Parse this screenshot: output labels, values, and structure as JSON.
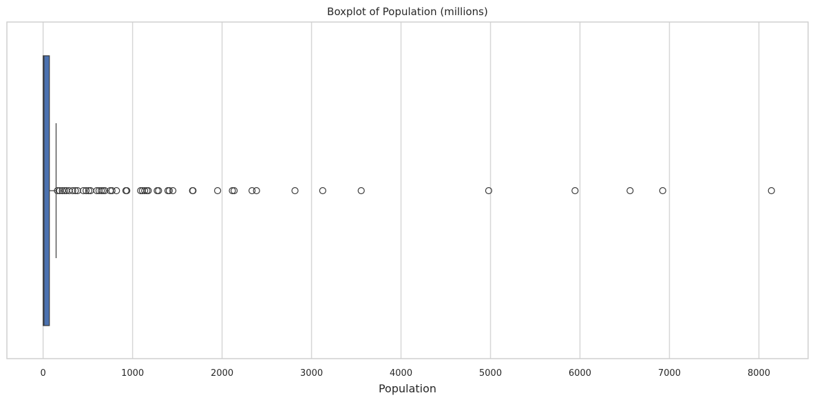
{
  "chart_data": {
    "type": "boxplot",
    "orientation": "horizontal",
    "title": "Boxplot of Population (millions)",
    "xlabel": "Population",
    "ylabel": "",
    "xlim": [
      -405,
      8550
    ],
    "xticks": [
      0,
      1000,
      2000,
      3000,
      4000,
      5000,
      6000,
      7000,
      8000
    ],
    "xtick_labels": [
      "0",
      "1000",
      "2000",
      "3000",
      "4000",
      "5000",
      "6000",
      "7000",
      "8000"
    ],
    "grid": true,
    "box": {
      "q1": 0.5,
      "median": 10,
      "q3": 70,
      "whisker_low": 0,
      "whisker_high": 145
    },
    "outliers": [
      160,
      185,
      215,
      240,
      260,
      290,
      330,
      360,
      385,
      450,
      480,
      510,
      530,
      600,
      625,
      650,
      670,
      690,
      750,
      770,
      820,
      925,
      935,
      1090,
      1110,
      1135,
      1160,
      1175,
      1275,
      1290,
      1395,
      1410,
      1450,
      1670,
      1675,
      1950,
      2115,
      2135,
      2335,
      2385,
      2815,
      3125,
      3555,
      4980,
      5945,
      6560,
      6925,
      8140
    ],
    "colors": {
      "box_fill": "#4c72b0",
      "line": "#3a3a3a",
      "grid": "#d6d6d6",
      "frame": "#cfcfcf",
      "marker_edge": "#3a3a3a"
    }
  }
}
